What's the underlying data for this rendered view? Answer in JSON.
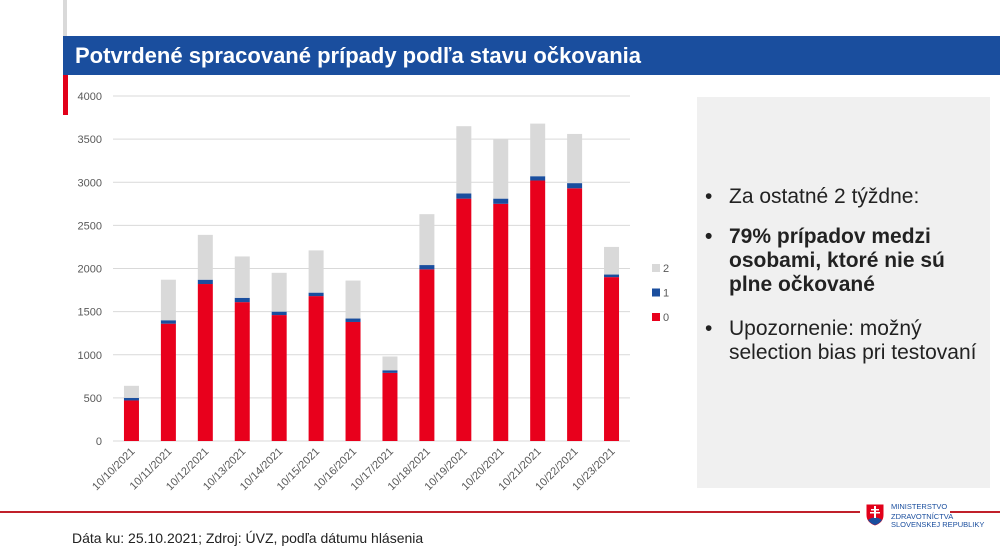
{
  "header": {
    "title": "Potvrdené spracované prípady podľa stavu očkovania"
  },
  "chart_data": {
    "type": "bar",
    "stacked": true,
    "categories": [
      "10/10/2021",
      "10/11/2021",
      "10/12/2021",
      "10/13/2021",
      "10/14/2021",
      "10/15/2021",
      "10/16/2021",
      "10/17/2021",
      "10/18/2021",
      "10/19/2021",
      "10/20/2021",
      "10/21/2021",
      "10/22/2021",
      "10/23/2021"
    ],
    "series": [
      {
        "name": "0",
        "color": "#e8001c",
        "values": [
          470,
          1360,
          1820,
          1610,
          1460,
          1680,
          1380,
          790,
          1990,
          2810,
          2750,
          3020,
          2930,
          1900
        ]
      },
      {
        "name": "1",
        "color": "#1a4e9e",
        "values": [
          30,
          40,
          50,
          50,
          40,
          40,
          40,
          30,
          50,
          60,
          60,
          50,
          60,
          30
        ]
      },
      {
        "name": "2",
        "color": "#d9d9d9",
        "values": [
          140,
          470,
          520,
          480,
          450,
          490,
          440,
          160,
          590,
          780,
          690,
          610,
          570,
          320
        ]
      }
    ],
    "ylim": [
      0,
      4000
    ],
    "yticks": [
      "0",
      "500",
      "1000",
      "1500",
      "2000",
      "2500",
      "3000",
      "3500",
      "4000"
    ],
    "grid": true,
    "legend_position": "right",
    "legend_order": [
      "2",
      "1",
      "0"
    ]
  },
  "panel": {
    "bullets": [
      {
        "text": "Za ostatné 2 týždne:",
        "bold": false
      },
      {
        "text": "79% prípadov medzi osobami, ktoré nie sú plne očkované",
        "bold": true
      },
      {
        "text": "Upozornenie: možný selection bias pri testovaní",
        "bold": false
      }
    ]
  },
  "footer": {
    "text": "Dáta ku: 25.10.2021; Zdroj: ÚVZ, podľa dátumu hlásenia"
  },
  "logo": {
    "line1": "MINISTERSTVO",
    "line2": "ZDRAVOTNÍCTVA",
    "line3": "SLOVENSKEJ REPUBLIKY"
  }
}
